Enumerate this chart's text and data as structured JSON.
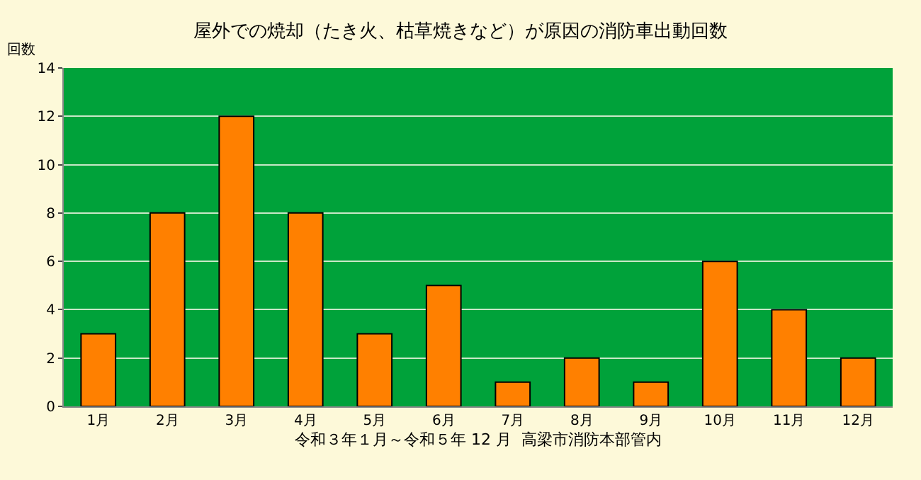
{
  "chart_data": {
    "type": "bar",
    "title": "屋外での焼却（たき火、枯草焼きなど）が原因の消防車出動回数",
    "ylabel": "回数",
    "xlabel": "令和３年１月～令和５年 12 月  高梁市消防本部管内",
    "categories": [
      "1月",
      "2月",
      "3月",
      "4月",
      "5月",
      "6月",
      "7月",
      "8月",
      "9月",
      "10月",
      "11月",
      "12月"
    ],
    "values": [
      3,
      8,
      12,
      8,
      3,
      5,
      1,
      2,
      1,
      6,
      4,
      2
    ],
    "color": "#ff8000",
    "ylim": [
      0,
      14
    ],
    "yticks": [
      0,
      2,
      4,
      6,
      8,
      10,
      12,
      14
    ],
    "grid": "y",
    "legend": false
  }
}
